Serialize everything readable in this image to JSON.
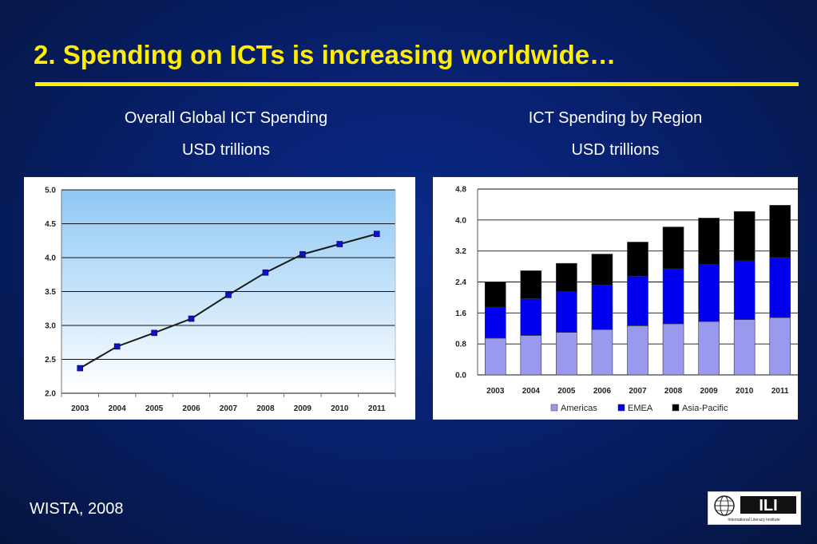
{
  "slide": {
    "title": "2. Spending on ICTs is increasing worldwide…",
    "source": "WISTA, 2008",
    "accent_color": "#ffee00",
    "logo": {
      "icon": "globe-icon",
      "text": "ILI",
      "subtext": "International Literacy Institute"
    }
  },
  "captions": {
    "left": {
      "line1": "Overall Global ICT Spending",
      "line2": "USD trillions"
    },
    "right": {
      "line1": "ICT Spending by Region",
      "line2": "USD trillions"
    }
  },
  "chart_data": [
    {
      "type": "line",
      "title": "Overall Global ICT Spending",
      "ylabel": "USD trillions",
      "categories": [
        "2003",
        "2004",
        "2005",
        "2006",
        "2007",
        "2008",
        "2009",
        "2010",
        "2011"
      ],
      "values": [
        2.37,
        2.69,
        2.89,
        3.1,
        3.45,
        3.78,
        4.05,
        4.2,
        4.35
      ],
      "ylim": [
        2.0,
        5.0
      ],
      "yticks": [
        "5.0",
        "4.5",
        "4.0",
        "3.5",
        "3.0",
        "2.5",
        "2.0"
      ],
      "grid": true,
      "legend": "none",
      "line_color": "#1a1a1a",
      "marker_color": "#1010c8",
      "background": "gradient light-blue to white"
    },
    {
      "type": "bar",
      "stacked": true,
      "title": "ICT Spending by Region",
      "ylabel": "USD trillions",
      "categories": [
        "2003",
        "2004",
        "2005",
        "2006",
        "2007",
        "2008",
        "2009",
        "2010",
        "2011"
      ],
      "series": [
        {
          "name": "Americas",
          "color": "#9999ee",
          "values": [
            0.95,
            1.02,
            1.1,
            1.17,
            1.27,
            1.32,
            1.38,
            1.43,
            1.48
          ]
        },
        {
          "name": "EMEA",
          "color": "#0000ee",
          "values": [
            0.8,
            0.95,
            1.05,
            1.15,
            1.28,
            1.42,
            1.47,
            1.52,
            1.55
          ]
        },
        {
          "name": "Asia-Pacific",
          "color": "#000000",
          "values": [
            0.65,
            0.72,
            0.73,
            0.8,
            0.88,
            1.08,
            1.2,
            1.27,
            1.35
          ]
        }
      ],
      "ylim": [
        0.0,
        4.8
      ],
      "yticks": [
        "4.8",
        "4.0",
        "3.2",
        "2.4",
        "1.6",
        "0.8",
        "0.0"
      ],
      "grid": true,
      "legend": "bottom"
    }
  ]
}
